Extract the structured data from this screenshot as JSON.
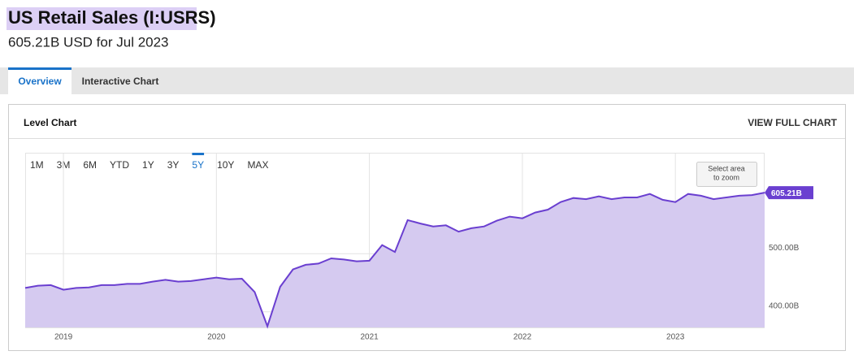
{
  "header": {
    "title": "US Retail Sales (I:USRS)",
    "subtitle": "605.21B USD for Jul 2023"
  },
  "tabs": {
    "items": [
      "Overview",
      "Interactive Chart"
    ],
    "active": 0
  },
  "panel": {
    "title": "Level Chart",
    "action": "VIEW FULL CHART"
  },
  "chart_data": {
    "type": "area",
    "ranges": [
      "1M",
      "3M",
      "6M",
      "YTD",
      "1Y",
      "3Y",
      "5Y",
      "10Y",
      "MAX"
    ],
    "active_range": 6,
    "zoom_hint": [
      "Select area",
      "to zoom"
    ],
    "categories": [
      null,
      null,
      null,
      "2019",
      null,
      null,
      null,
      null,
      null,
      null,
      null,
      null,
      null,
      null,
      null,
      "2020",
      null,
      null,
      null,
      null,
      null,
      null,
      null,
      null,
      null,
      null,
      null,
      "2021",
      null,
      null,
      null,
      null,
      null,
      null,
      null,
      null,
      null,
      null,
      null,
      "2022",
      null,
      null,
      null,
      null,
      null,
      null,
      null,
      null,
      null,
      null,
      null,
      "2023",
      null,
      null,
      null,
      null,
      null,
      null,
      null
    ],
    "series": [
      {
        "name": "US Retail Sales",
        "color": "#6a3fd0",
        "fill": "#d5caf0",
        "values": [
          441,
          445,
          446,
          438,
          441,
          442,
          446,
          446,
          448,
          448,
          452,
          455,
          452,
          453,
          456,
          459,
          456,
          457,
          434,
          375,
          443,
          473,
          481,
          483,
          492,
          490,
          487,
          488,
          515,
          503,
          558,
          552,
          547,
          549,
          538,
          544,
          547,
          557,
          564,
          561,
          571,
          576,
          589,
          596,
          594,
          599,
          594,
          597,
          597,
          603,
          593,
          589,
          603,
          600,
          594,
          597,
          600,
          601,
          605.21
        ]
      }
    ],
    "last_label": "605.21B",
    "ylim": [
      373,
      674
    ],
    "yticks": [
      {
        "value": 400,
        "label": "400.00B"
      },
      {
        "value": 500,
        "label": "500.00B"
      }
    ],
    "grid": true
  }
}
